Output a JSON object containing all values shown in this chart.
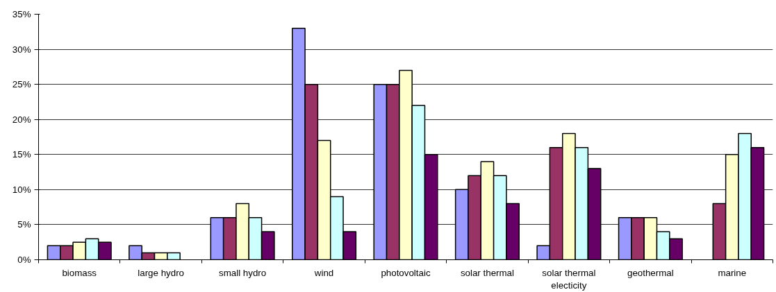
{
  "chart_data": {
    "type": "bar",
    "categories": [
      "biomass",
      "large hydro",
      "small hydro",
      "wind",
      "photovoltaic",
      "solar thermal",
      "solar thermal\nelecticity",
      "geothermal",
      "marine"
    ],
    "series": [
      {
        "color": "#9999ff",
        "values": [
          2,
          2,
          6,
          33,
          25,
          10,
          2,
          6,
          null
        ]
      },
      {
        "color": "#993366",
        "values": [
          2,
          1,
          6,
          25,
          25,
          12,
          16,
          6,
          8
        ]
      },
      {
        "color": "#ffffcc",
        "values": [
          2.5,
          1,
          8,
          17,
          27,
          14,
          18,
          6,
          15
        ]
      },
      {
        "color": "#ccffff",
        "values": [
          3,
          1,
          6,
          9,
          22,
          12,
          16,
          4,
          18
        ]
      },
      {
        "color": "#660066",
        "values": [
          2.5,
          null,
          4,
          4,
          15,
          8,
          13,
          3,
          16
        ]
      }
    ],
    "ylim": [
      0,
      35
    ],
    "yticks": [
      {
        "value": 0,
        "label": "0%"
      },
      {
        "value": 5,
        "label": "5%"
      },
      {
        "value": 10,
        "label": "10%"
      },
      {
        "value": 15,
        "label": "15%"
      },
      {
        "value": 20,
        "label": "20%"
      },
      {
        "value": 25,
        "label": "25%"
      },
      {
        "value": 30,
        "label": "30%"
      },
      {
        "value": 35,
        "label": "35%"
      }
    ],
    "grid": "y"
  }
}
